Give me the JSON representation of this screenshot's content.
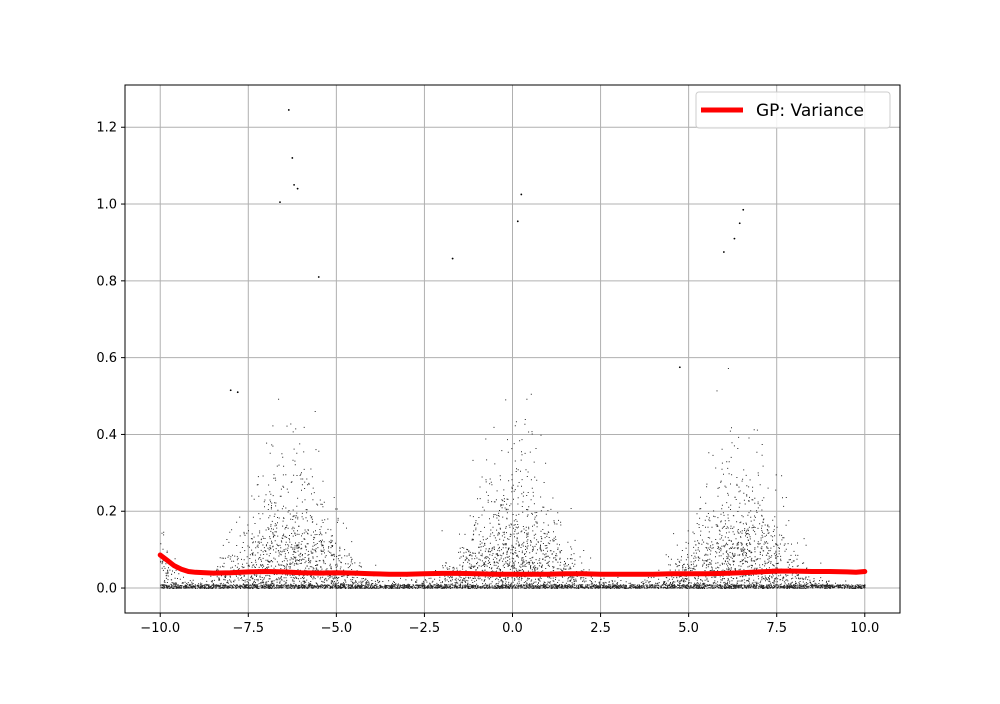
{
  "chart_data": {
    "type": "scatter",
    "title": "",
    "xlabel": "",
    "ylabel": "",
    "xlim": [
      -11.0,
      11.0
    ],
    "ylim": [
      -0.065,
      1.31
    ],
    "grid": true,
    "legend_position": "top-right",
    "x_ticks": [
      -10.0,
      -7.5,
      -5.0,
      -2.5,
      0.0,
      2.5,
      5.0,
      7.5,
      10.0
    ],
    "x_tick_labels": [
      "−10.0",
      "−7.5",
      "−5.0",
      "−2.5",
      "0.0",
      "2.5",
      "5.0",
      "7.5",
      "10.0"
    ],
    "y_ticks": [
      0.0,
      0.2,
      0.4,
      0.6,
      0.8,
      1.0,
      1.2
    ],
    "y_tick_labels": [
      "0.0",
      "0.2",
      "0.4",
      "0.6",
      "0.8",
      "1.0",
      "1.2"
    ],
    "series": [
      {
        "kind": "scatter",
        "color": "#000000",
        "description_peaks": [
          {
            "center_x": -6.3,
            "max_y": 1.245
          },
          {
            "center_x": 0.0,
            "max_y": 1.03
          },
          {
            "center_x": 6.4,
            "max_y": 0.99
          }
        ],
        "outliers": [
          {
            "x": -6.35,
            "y": 1.245
          },
          {
            "x": -6.25,
            "y": 1.12
          },
          {
            "x": -6.2,
            "y": 1.05
          },
          {
            "x": -6.1,
            "y": 1.04
          },
          {
            "x": -6.6,
            "y": 1.005
          },
          {
            "x": 0.25,
            "y": 1.025
          },
          {
            "x": 0.15,
            "y": 0.955
          },
          {
            "x": 6.55,
            "y": 0.985
          },
          {
            "x": 6.45,
            "y": 0.95
          },
          {
            "x": 6.3,
            "y": 0.91
          },
          {
            "x": 6.0,
            "y": 0.875
          },
          {
            "x": -1.7,
            "y": 0.858
          },
          {
            "x": -5.5,
            "y": 0.81
          },
          {
            "x": 4.75,
            "y": 0.575
          },
          {
            "x": -8.0,
            "y": 0.515
          },
          {
            "x": -7.8,
            "y": 0.51
          }
        ]
      },
      {
        "kind": "line",
        "name": "GP: Variance",
        "color": "#ff0000",
        "x": [
          -10.0,
          -9.8,
          -9.6,
          -9.4,
          -9.2,
          -9.0,
          -8.5,
          -8.0,
          -7.5,
          -7.0,
          -6.5,
          -6.0,
          -5.5,
          -5.0,
          -4.5,
          -4.0,
          -3.5,
          -3.0,
          -2.5,
          -2.0,
          -1.5,
          -1.0,
          -0.5,
          0.0,
          0.5,
          1.0,
          1.5,
          2.0,
          2.5,
          3.0,
          3.5,
          4.0,
          4.5,
          5.0,
          5.5,
          6.0,
          6.5,
          7.0,
          7.5,
          8.0,
          8.5,
          9.0,
          9.5,
          9.75,
          10.0
        ],
        "y": [
          0.086,
          0.072,
          0.058,
          0.049,
          0.043,
          0.041,
          0.039,
          0.04,
          0.042,
          0.043,
          0.042,
          0.04,
          0.039,
          0.04,
          0.039,
          0.037,
          0.036,
          0.036,
          0.037,
          0.038,
          0.038,
          0.037,
          0.036,
          0.036,
          0.036,
          0.036,
          0.037,
          0.037,
          0.036,
          0.036,
          0.036,
          0.036,
          0.037,
          0.037,
          0.037,
          0.038,
          0.04,
          0.042,
          0.044,
          0.044,
          0.043,
          0.043,
          0.042,
          0.041,
          0.043
        ]
      }
    ]
  },
  "legend": {
    "entries": [
      {
        "label": "GP: Variance",
        "color": "#ff0000"
      }
    ]
  }
}
